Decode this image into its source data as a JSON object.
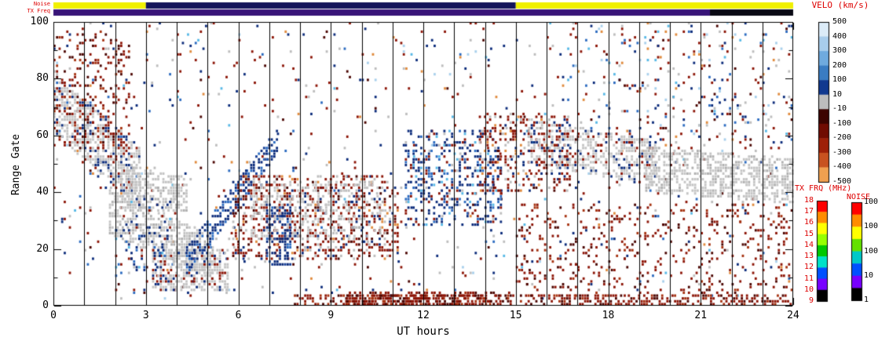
{
  "chart_data": {
    "type": "heatmap",
    "title": "",
    "xlabel": "UT hours",
    "ylabel": "Range Gate",
    "xlim": [
      0,
      24
    ],
    "ylim": [
      0,
      100
    ],
    "x_ticks": [
      0,
      3,
      6,
      9,
      12,
      15,
      18,
      21,
      24
    ],
    "y_ticks": [
      0,
      20,
      40,
      60,
      80,
      100
    ],
    "hour_gridlines": true,
    "seed": 1337,
    "cells_per_hour": 12,
    "top_bars": {
      "noise_label": "Noise",
      "txfreq_label": "TX Freq",
      "noise_segments": [
        {
          "x": [
            0,
            3
          ],
          "color": "#f0f000"
        },
        {
          "x": [
            3,
            15
          ],
          "color": "#14145a"
        },
        {
          "x": [
            15,
            24
          ],
          "color": "#f0f000"
        }
      ],
      "txfreq_segments": [
        {
          "x": [
            0,
            21.3
          ],
          "color": "#381478"
        },
        {
          "x": [
            21.3,
            24
          ],
          "color": "#0a0a14"
        }
      ]
    },
    "colorbars": {
      "velocity": {
        "title": "VELO (km/s)",
        "segments": [
          "#dcecf8",
          "#a8cdec",
          "#6faade",
          "#3a7cc2",
          "#11398f",
          "#bdbdbd",
          "#3c0400",
          "#700c02",
          "#9e2008",
          "#c85220",
          "#f0a050"
        ],
        "labels": [
          "500",
          "400",
          "300",
          "200",
          "100",
          "10",
          "-10",
          "-100",
          "-200",
          "-300",
          "-400",
          "-500"
        ]
      },
      "txfrq": {
        "title": "TX FRQ (MHz)",
        "colors": [
          "#ff0000",
          "#ff8c00",
          "#ffff00",
          "#96ff00",
          "#00c800",
          "#00e1c8",
          "#0050ff",
          "#7800ff",
          "#000000"
        ],
        "labels": [
          "18",
          "17",
          "16",
          "15",
          "14",
          "13",
          "12",
          "11",
          "10",
          "9"
        ]
      },
      "noise": {
        "title": "NOISE",
        "colors": [
          "#ff0000",
          "#ff8c00",
          "#ffff00",
          "#64e100",
          "#00c8c8",
          "#0050ff",
          "#7800ff",
          "#000000"
        ],
        "labels": [
          "10000",
          "1000",
          "100",
          "10",
          "1"
        ]
      }
    },
    "palettes": {
      "mix": [
        [
          "#8c1406",
          0.28
        ],
        [
          "#0a2a7a",
          0.2
        ],
        [
          "#2a6ac0",
          0.09
        ],
        [
          "#56b8e6",
          0.06
        ],
        [
          "#e08a3c",
          0.06
        ],
        [
          "#bdbdbd",
          0.17
        ],
        [
          "#a8d0ec",
          0.05
        ],
        [
          "#4a0400",
          0.09
        ]
      ],
      "gray": [
        [
          "#c4c4c4",
          0.8
        ],
        [
          "#b0b0b0",
          0.2
        ]
      ],
      "grayMix": [
        [
          "#c4c4c4",
          0.72
        ],
        [
          "#8c1406",
          0.14
        ],
        [
          "#0a2a7a",
          0.14
        ]
      ],
      "darkred": [
        [
          "#8c1406",
          0.6
        ],
        [
          "#4a0400",
          0.25
        ],
        [
          "#a63210",
          0.15
        ]
      ],
      "redMix": [
        [
          "#8c1406",
          0.55
        ],
        [
          "#4a0400",
          0.12
        ],
        [
          "#bdbdbd",
          0.15
        ],
        [
          "#0a2a7a",
          0.1
        ],
        [
          "#e08a3c",
          0.08
        ]
      ],
      "navy": [
        [
          "#0a2a7a",
          0.62
        ],
        [
          "#2a6ac0",
          0.22
        ],
        [
          "#123c96",
          0.16
        ]
      ],
      "navyMix": [
        [
          "#0a2a7a",
          0.5
        ],
        [
          "#2a6ac0",
          0.18
        ],
        [
          "#8c1406",
          0.18
        ],
        [
          "#56b8e6",
          0.07
        ],
        [
          "#bdbdbd",
          0.07
        ]
      ]
    },
    "regions": [
      {
        "name": "background-speckle",
        "x": [
          0,
          24
        ],
        "y": [
          2,
          100
        ],
        "density": 0.03,
        "palette": "mix"
      },
      {
        "name": "gray-band-upper-left",
        "x": [
          0,
          2.8
        ],
        "yc": [
          72,
          45
        ],
        "half": 11,
        "density": 0.6,
        "palette": "grayMix"
      },
      {
        "name": "gray-band-left-2",
        "x": [
          2.2,
          4.4
        ],
        "yc": [
          43,
          38
        ],
        "half": 7,
        "density": 0.5,
        "palette": "gray"
      },
      {
        "name": "topleft-red-speckle",
        "x": [
          0,
          2.6
        ],
        "y": [
          55,
          97
        ],
        "density": 0.15,
        "palette": "darkred"
      },
      {
        "name": "gray-band-lower",
        "x": [
          1.8,
          5.2
        ],
        "yc": [
          33,
          17
        ],
        "half": 8,
        "density": 0.55,
        "palette": "gray"
      },
      {
        "name": "gray-blob-bottom",
        "x": [
          3.2,
          5.7
        ],
        "y": [
          5,
          20
        ],
        "density": 0.6,
        "palette": "grayMix"
      },
      {
        "name": "early-blue-speckles",
        "x": [
          2.0,
          3.8
        ],
        "y": [
          12,
          38
        ],
        "density": 0.15,
        "palette": "navyMix"
      },
      {
        "name": "blue-rising-streak",
        "x": [
          4.3,
          7.3
        ],
        "yc": [
          15,
          58
        ],
        "half": 5,
        "density": 0.55,
        "palette": "navy"
      },
      {
        "name": "midday-red-region",
        "x": [
          5.8,
          11.2
        ],
        "y": [
          16,
          46
        ],
        "density": 0.35,
        "palette": "redMix"
      },
      {
        "name": "midday-gray-overlay",
        "x": [
          6.4,
          10.8
        ],
        "y": [
          24,
          44
        ],
        "density": 0.2,
        "palette": "gray"
      },
      {
        "name": "seven-hour-blue-cluster",
        "x": [
          6.9,
          7.7
        ],
        "y": [
          14,
          36
        ],
        "density": 0.45,
        "palette": "navy"
      },
      {
        "name": "bottom-red-band",
        "x": [
          7.8,
          24
        ],
        "y": [
          0,
          4
        ],
        "density": 0.45,
        "palette": "darkred"
      },
      {
        "name": "bottom-red-dense",
        "x": [
          9.5,
          14.5
        ],
        "y": [
          0,
          5
        ],
        "density": 0.55,
        "palette": "darkred"
      },
      {
        "name": "afternoon-blue-patch",
        "x": [
          11.4,
          14.6
        ],
        "y": [
          28,
          62
        ],
        "density": 0.3,
        "palette": "navyMix"
      },
      {
        "name": "dusk-mixed-patch",
        "x": [
          13.8,
          16.8
        ],
        "y": [
          40,
          68
        ],
        "density": 0.25,
        "palette": "redMix"
      },
      {
        "name": "evening-gray-band-1",
        "x": [
          15.4,
          19.6
        ],
        "yc": [
          58,
          50
        ],
        "half": 8,
        "density": 0.5,
        "palette": "grayMix"
      },
      {
        "name": "evening-gray-band-2",
        "x": [
          19.2,
          24
        ],
        "yc": [
          48,
          44
        ],
        "half": 8,
        "density": 0.55,
        "palette": "gray"
      },
      {
        "name": "evening-low-red-speckle",
        "x": [
          15,
          24
        ],
        "y": [
          4,
          36
        ],
        "density": 0.1,
        "palette": "darkred"
      },
      {
        "name": "evening-high-speckle",
        "x": [
          16.5,
          24
        ],
        "y": [
          58,
          100
        ],
        "density": 0.07,
        "palette": "mix"
      }
    ]
  }
}
